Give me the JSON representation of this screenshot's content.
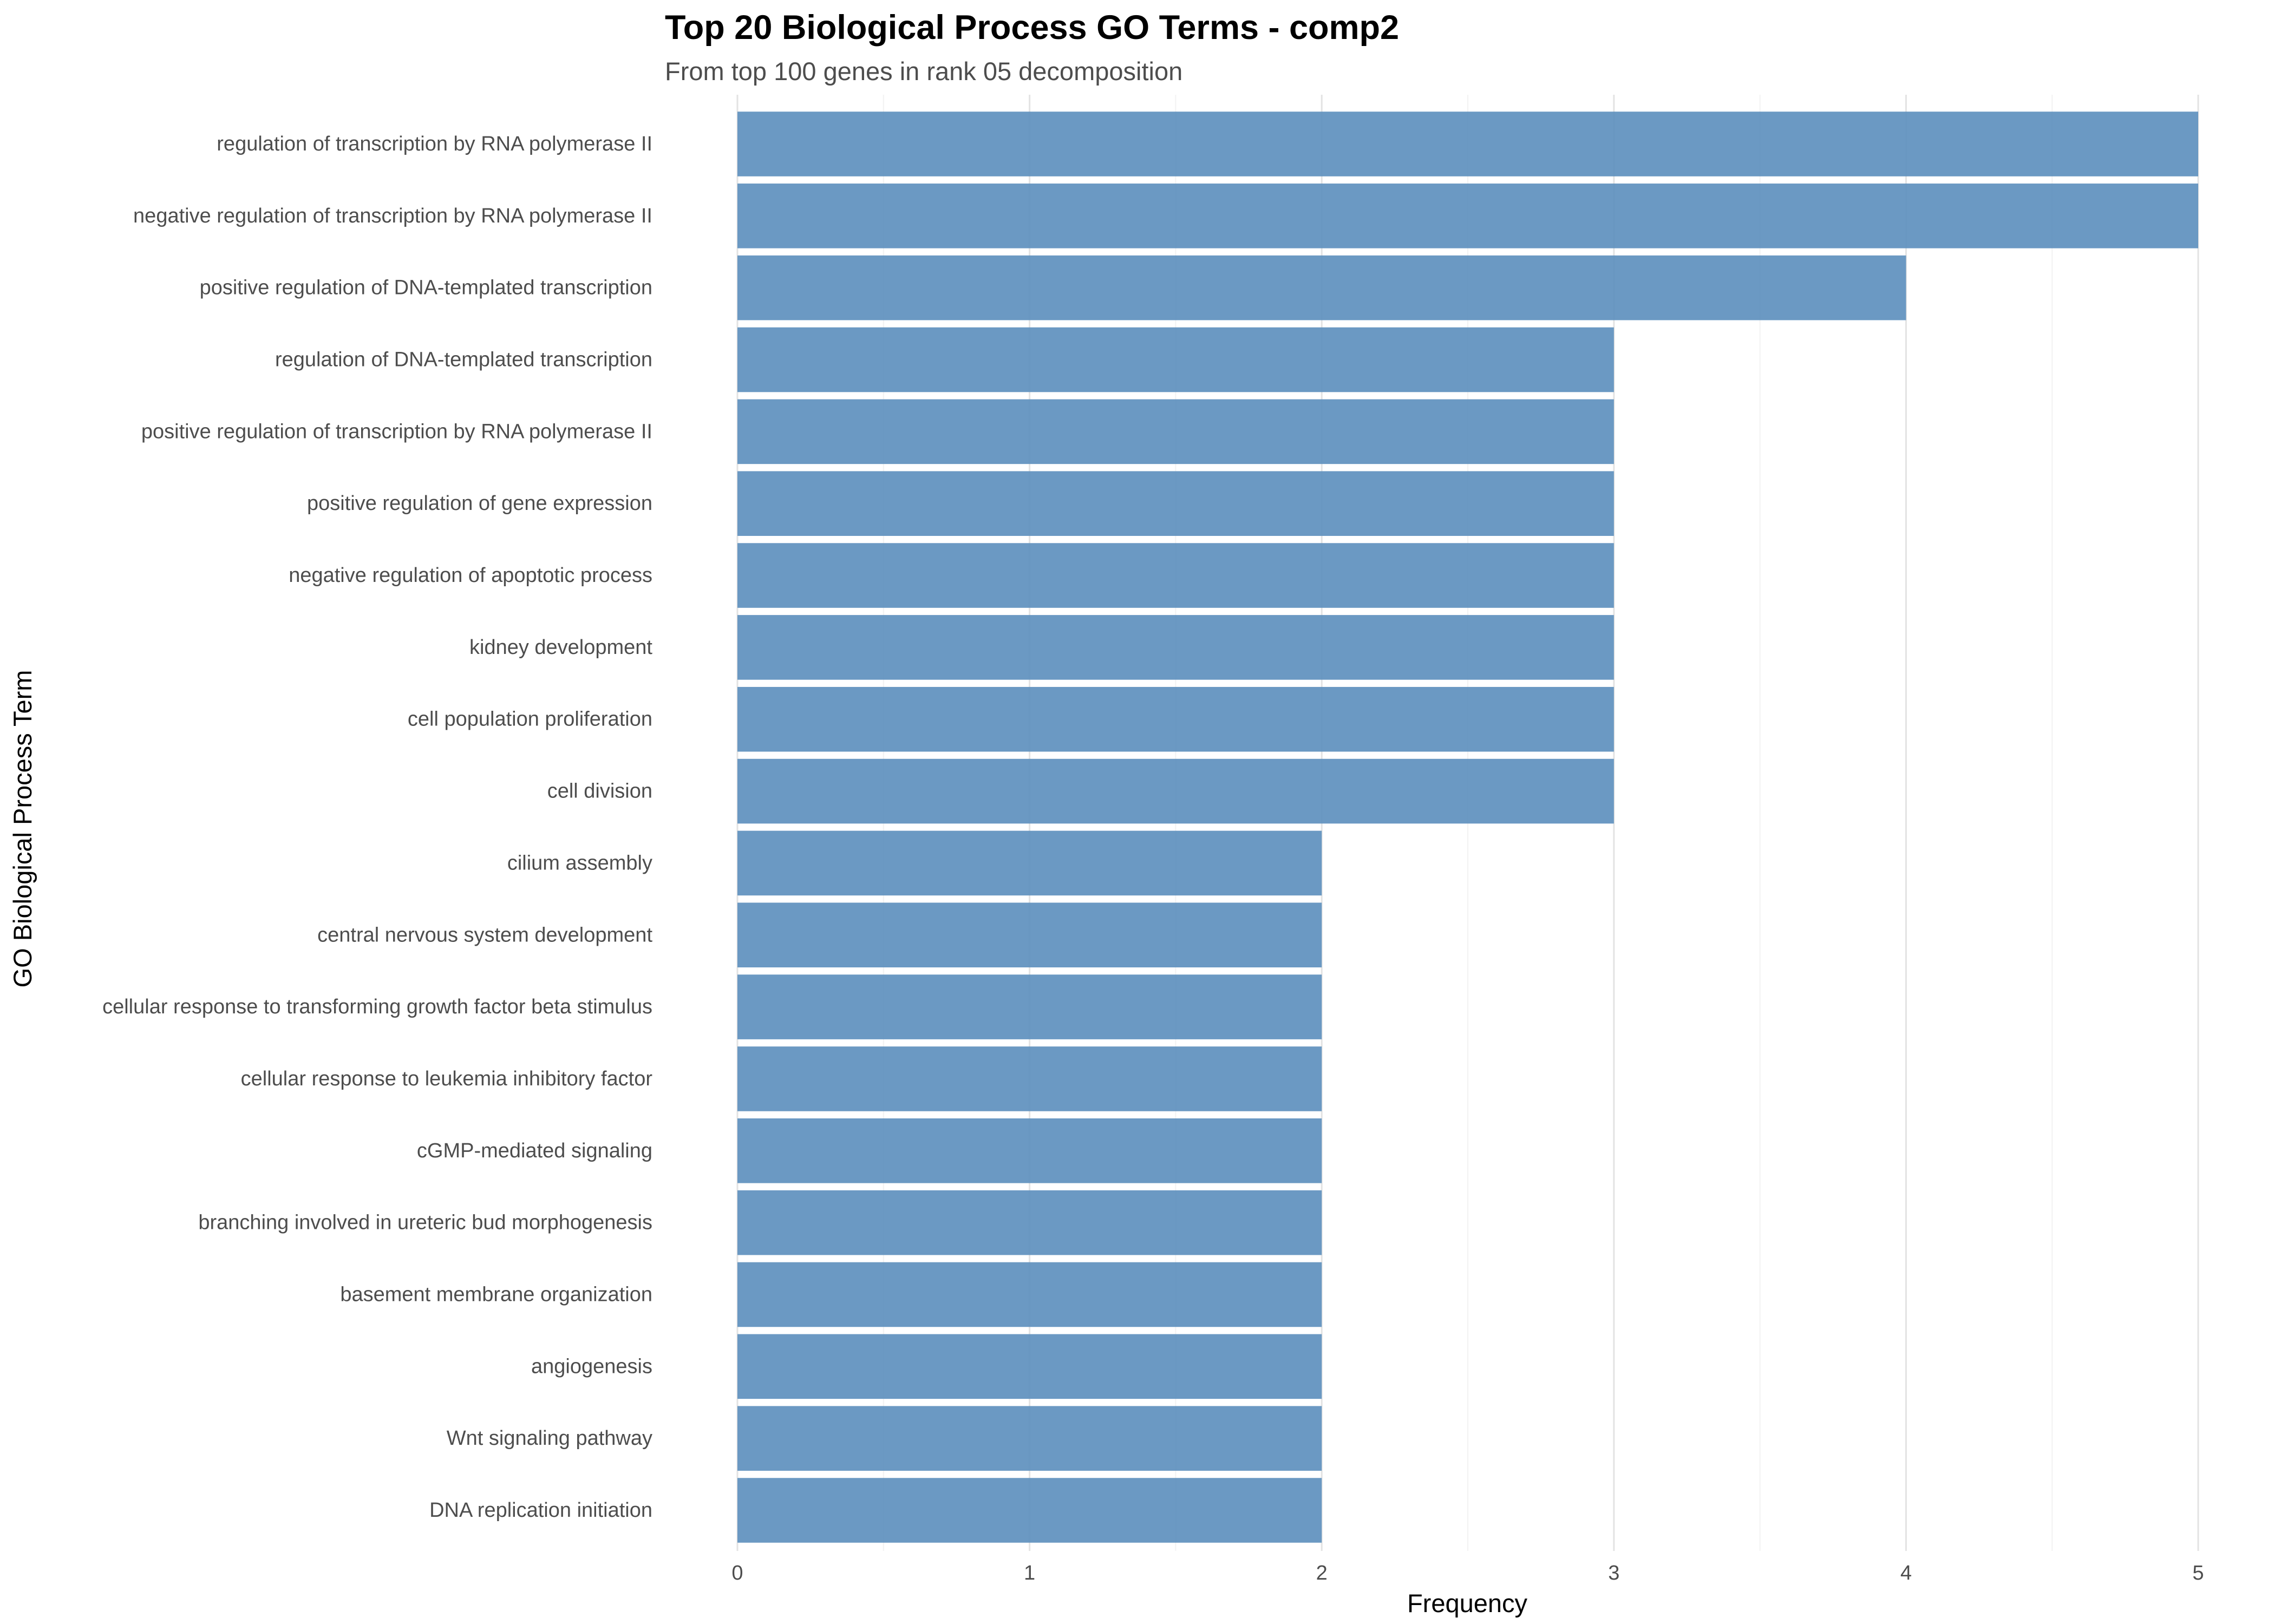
{
  "chart_data": {
    "type": "bar",
    "orientation": "horizontal",
    "title": "Top 20 Biological Process GO Terms - comp2",
    "subtitle": "From top 100 genes in rank 05 decomposition",
    "xlabel": "Frequency",
    "ylabel": "GO Biological Process Term",
    "xlim": [
      0,
      5
    ],
    "x_ticks": [
      "0",
      "1",
      "2",
      "3",
      "4",
      "5"
    ],
    "grid": true,
    "bar_color": "#5b8ebd",
    "categories": [
      "regulation of transcription by RNA polymerase II",
      "negative regulation of transcription by RNA polymerase II",
      "positive regulation of DNA-templated transcription",
      "regulation of DNA-templated transcription",
      "positive regulation of transcription by RNA polymerase II",
      "positive regulation of gene expression",
      "negative regulation of apoptotic process",
      "kidney development",
      "cell population proliferation",
      "cell division",
      "cilium assembly",
      "central nervous system development",
      "cellular response to transforming growth factor beta stimulus",
      "cellular response to leukemia inhibitory factor",
      "cGMP-mediated signaling",
      "branching involved in ureteric bud morphogenesis",
      "basement membrane organization",
      "angiogenesis",
      "Wnt signaling pathway",
      "DNA replication initiation"
    ],
    "values": [
      5,
      5,
      4,
      3,
      3,
      3,
      3,
      3,
      3,
      3,
      2,
      2,
      2,
      2,
      2,
      2,
      2,
      2,
      2,
      2
    ]
  }
}
